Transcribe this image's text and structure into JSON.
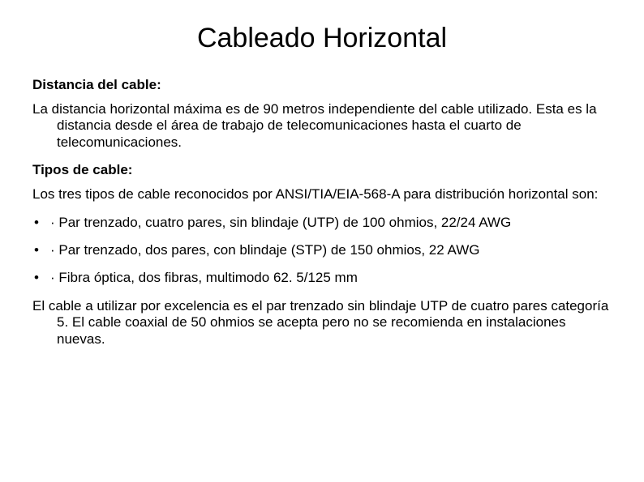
{
  "title": "Cableado Horizontal",
  "section1": {
    "heading": "Distancia del cable:",
    "paragraph": "La distancia horizontal máxima es de 90 metros independiente del cable utilizado. Esta es la distancia desde el área de trabajo de telecomunicaciones hasta el cuarto de telecomunicaciones."
  },
  "section2": {
    "heading": "Tipos de cable:",
    "intro": "Los tres tipos de cable reconocidos por ANSI/TIA/EIA-568-A para distribución horizontal son:",
    "bullets": [
      "· Par trenzado, cuatro pares, sin blindaje (UTP) de 100 ohmios, 22/24 AWG",
      "· Par trenzado, dos pares, con blindaje (STP) de 150 ohmios, 22 AWG",
      "· Fibra óptica, dos fibras, multimodo 62. 5/125 mm"
    ],
    "closing": "El cable a utilizar por excelencia es el par trenzado sin blindaje UTP de cuatro pares categoría 5. El cable coaxial de 50 ohmios se acepta pero no se recomienda en instalaciones nuevas."
  },
  "styling": {
    "title_fontsize": 34,
    "body_fontsize": 17,
    "heading_weight": "bold",
    "text_color": "#000000",
    "background_color": "#ffffff",
    "font_family": "Arial"
  }
}
